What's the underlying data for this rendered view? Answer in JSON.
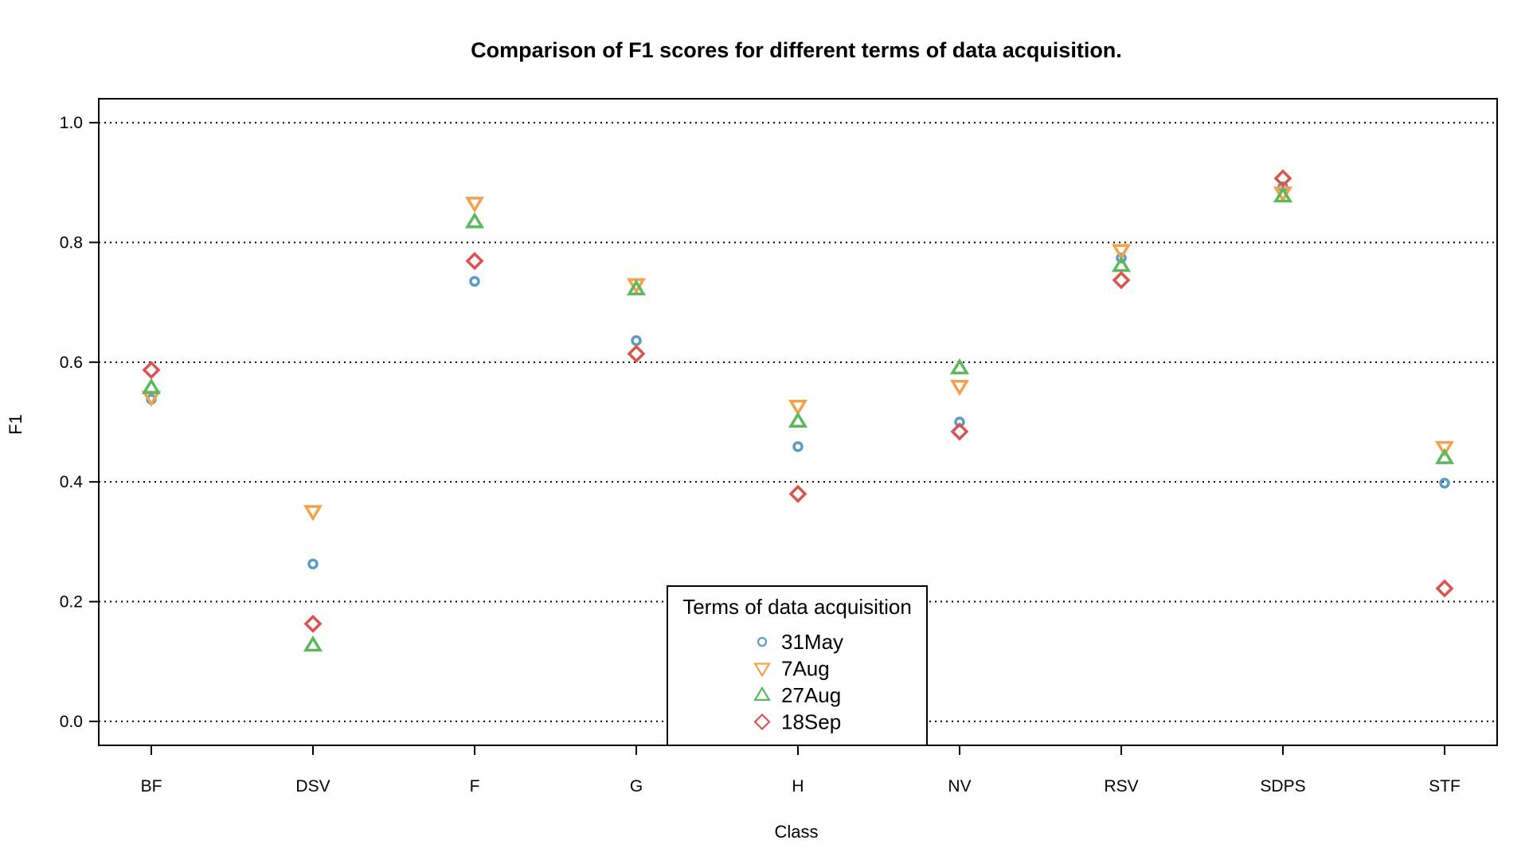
{
  "chart_data": {
    "type": "scatter",
    "title": "Comparison of F1 scores for different terms of data acquisition.",
    "xlabel": "Class",
    "ylabel": "F1",
    "categories": [
      "BF",
      "DSV",
      "F",
      "G",
      "H",
      "NV",
      "RSV",
      "SDPS",
      "STF"
    ],
    "ylim": [
      -0.04,
      1.04
    ],
    "yticks": [
      "0.0",
      "0.2",
      "0.4",
      "0.6",
      "0.8",
      "1.0"
    ],
    "grid": "horizontal dotted",
    "legend_title": "Terms of data acquisition",
    "legend_position": "bottom-center",
    "series": [
      {
        "name": "31May",
        "marker": "circle",
        "color": "#5b9bc8",
        "values": [
          0.538,
          0.263,
          0.735,
          0.636,
          0.459,
          0.5,
          0.774,
          0.893,
          0.398
        ]
      },
      {
        "name": "7Aug",
        "marker": "triangle-down",
        "color": "#f5a04a",
        "values": [
          0.542,
          0.351,
          0.866,
          0.73,
          0.527,
          0.56,
          0.787,
          0.883,
          0.458
        ]
      },
      {
        "name": "27Aug",
        "marker": "triangle-up",
        "color": "#5cb85c",
        "values": [
          0.557,
          0.127,
          0.834,
          0.722,
          0.501,
          0.59,
          0.761,
          0.877,
          0.44
        ]
      },
      {
        "name": "18Sep",
        "marker": "diamond",
        "color": "#d9534f",
        "values": [
          0.587,
          0.163,
          0.769,
          0.614,
          0.38,
          0.484,
          0.737,
          0.907,
          0.222
        ]
      }
    ]
  }
}
